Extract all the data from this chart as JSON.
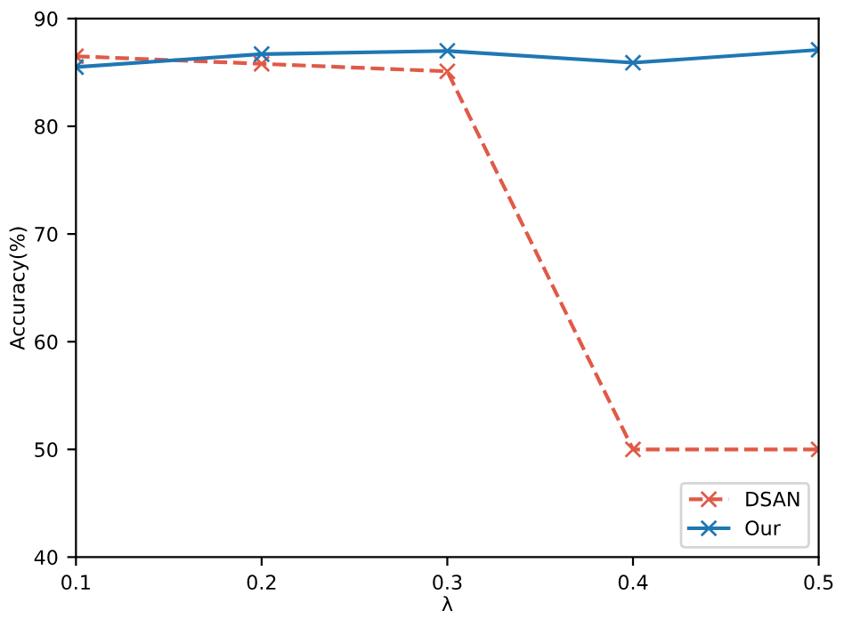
{
  "chart_data": {
    "type": "line",
    "xlabel": "λ",
    "ylabel": "Accuracy(%)",
    "x": [
      0.1,
      0.2,
      0.3,
      0.4,
      0.5
    ],
    "series": [
      {
        "name": "DSAN",
        "color": "#e05a47",
        "values": [
          86.5,
          85.8,
          85.1,
          50,
          50
        ],
        "line_style": "dashed"
      },
      {
        "name": "Our",
        "color": "#1f77b4",
        "values": [
          85.5,
          86.7,
          87.0,
          85.9,
          87.1
        ],
        "line_style": "solid"
      }
    ],
    "xlim": [
      0.1,
      0.5
    ],
    "ylim": [
      40,
      90
    ],
    "xticks": [
      0.1,
      0.2,
      0.3,
      0.4,
      0.5
    ],
    "yticks": [
      40,
      50,
      60,
      70,
      80,
      90
    ],
    "marker": "cross",
    "legend": "bottom right",
    "grid": false
  }
}
